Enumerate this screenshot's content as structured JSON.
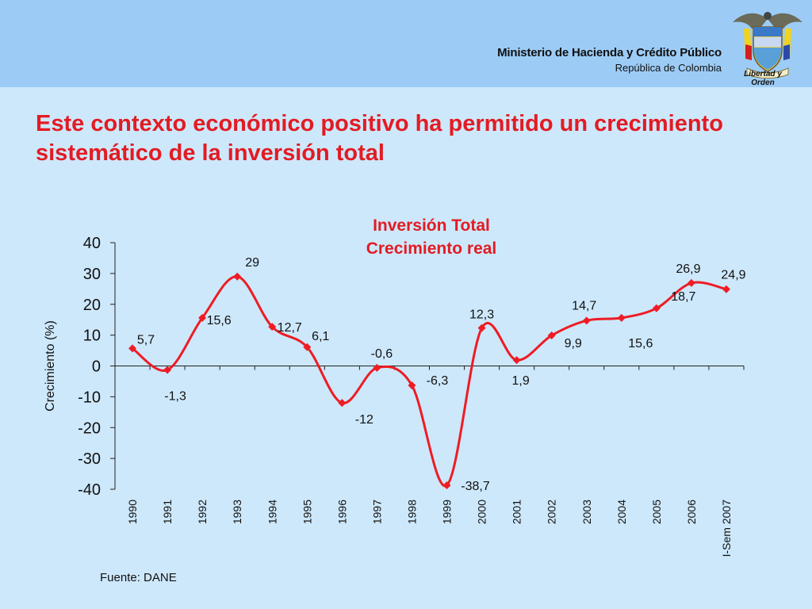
{
  "header": {
    "ministry": "Ministerio de Hacienda y Crédito Público",
    "country": "República de Colombia",
    "motto": "Libertad y Orden",
    "crest_icon": "colombia-coat-of-arms-icon",
    "background": "#9cccf6"
  },
  "slide": {
    "title": "Este contexto económico positivo ha permitido un crecimiento sistemático de la inversión total",
    "source": "Fuente: DANE",
    "background": "#cde8fb",
    "accent": "#e31b23"
  },
  "chart_data": {
    "type": "line",
    "title_line1": "Inversión Total",
    "title_line2": "Crecimiento real",
    "ylabel": "Crecimiento (%)",
    "xlabel": "",
    "ylim": [
      -40,
      40
    ],
    "yticks": [
      "40",
      "30",
      "20",
      "10",
      "0",
      "-10",
      "-20",
      "-30",
      "-40"
    ],
    "categories": [
      "1990",
      "1991",
      "1992",
      "1993",
      "1994",
      "1995",
      "1996",
      "1997",
      "1998",
      "1999",
      "2000",
      "2001",
      "2002",
      "2003",
      "2004",
      "2005",
      "2006",
      "I-Sem 2007"
    ],
    "values": [
      5.7,
      -1.3,
      15.6,
      29,
      12.7,
      6.1,
      -12,
      -0.6,
      -6.3,
      -38.7,
      12.3,
      1.9,
      9.9,
      14.7,
      15.6,
      18.7,
      26.9,
      24.9
    ],
    "labels": [
      "5,7",
      "-1,3",
      "15,6",
      "29",
      "12,7",
      "6,1",
      "-12",
      "-0,6",
      "-6,3",
      "-38,7",
      "12,3",
      "1,9",
      "9,9",
      "14,7",
      "15,6",
      "18,7",
      "26,9",
      "24,9"
    ],
    "line_color": "#ee1c24",
    "marker": "diamond",
    "grid": false
  }
}
